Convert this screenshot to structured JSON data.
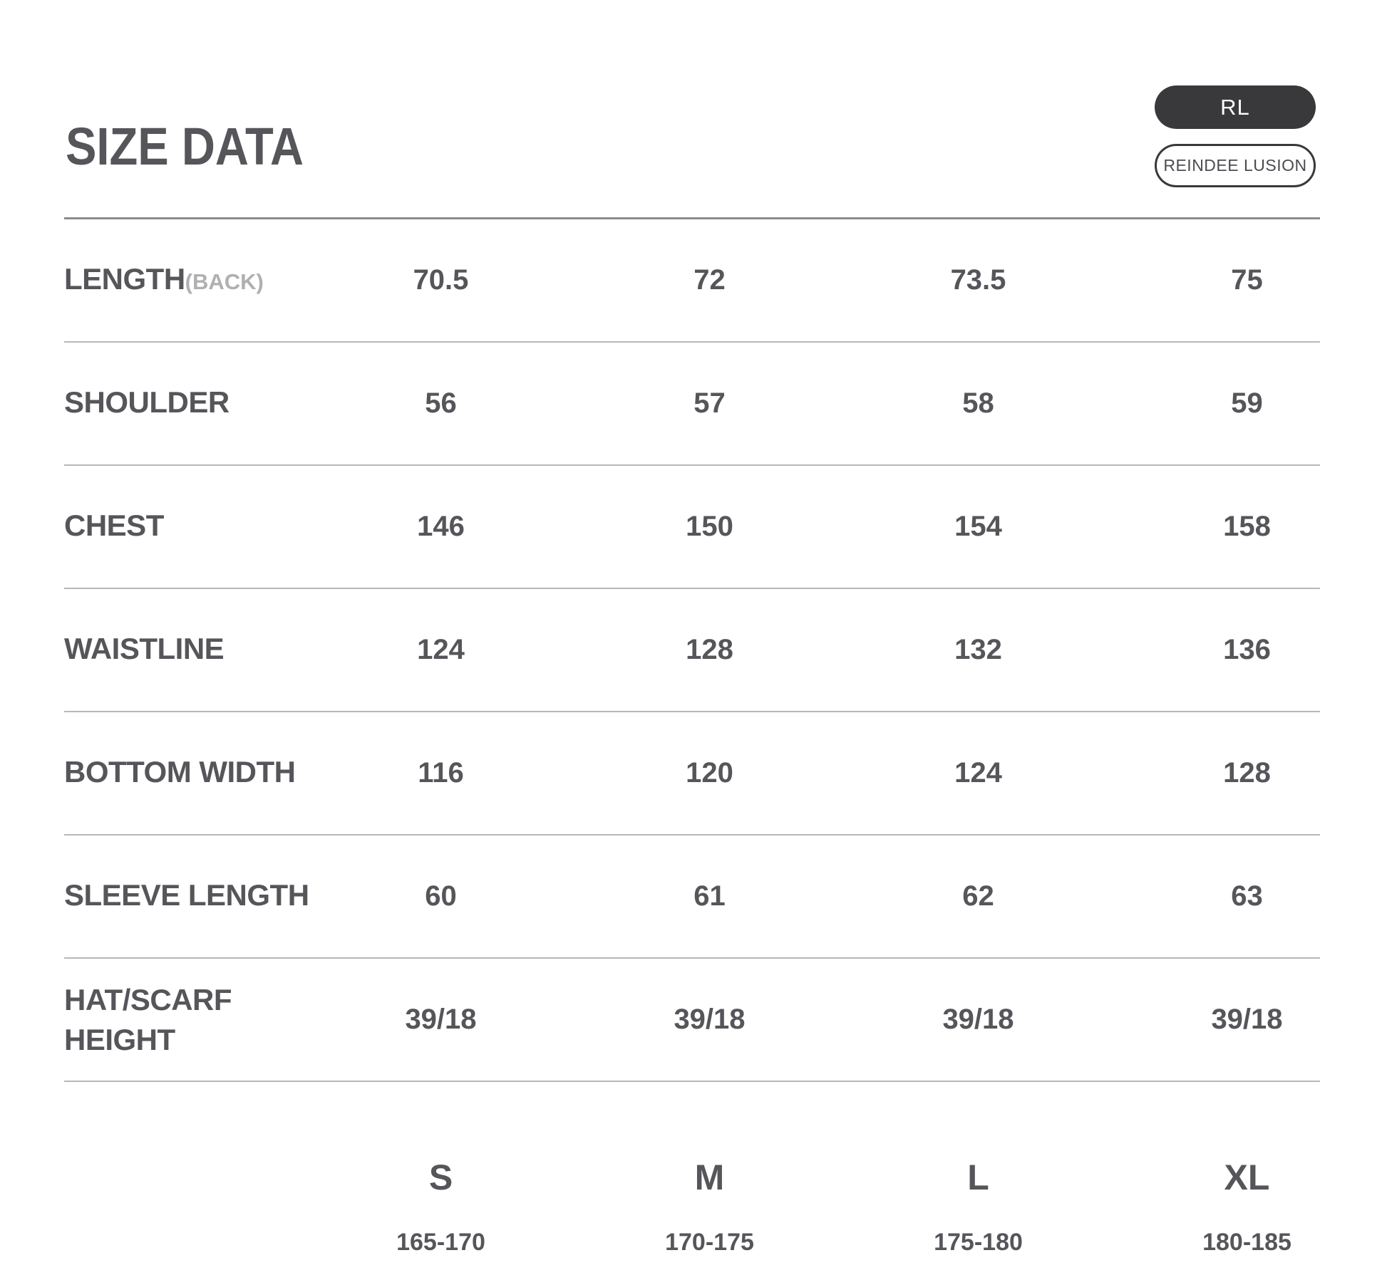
{
  "page": {
    "title": "SIZE DATA"
  },
  "badges": {
    "rl_label": "RL",
    "brand_label": "REINDEE LUSION"
  },
  "colors": {
    "background": "#ffffff",
    "text": "#56555a",
    "muted_text": "#b0b0b2",
    "divider": "#b7b7b7",
    "divider_strong": "#8c8c8c",
    "badge_background": "#39393b",
    "badge_text": "#ffffff"
  },
  "table": {
    "rows": [
      {
        "label_lines": [
          "LENGTH"
        ],
        "label_suffix": "(BACK)",
        "values": [
          "70.5",
          "72",
          "73.5",
          "75"
        ]
      },
      {
        "label_lines": [
          "SHOULDER"
        ],
        "values": [
          "56",
          "57",
          "58",
          "59"
        ]
      },
      {
        "label_lines": [
          "CHEST"
        ],
        "values": [
          "146",
          "150",
          "154",
          "158"
        ]
      },
      {
        "label_lines": [
          "WAISTLINE"
        ],
        "values": [
          "124",
          "128",
          "132",
          "136"
        ]
      },
      {
        "label_lines": [
          "BOTTOM WIDTH"
        ],
        "values": [
          "116",
          "120",
          "124",
          "128"
        ]
      },
      {
        "label_lines": [
          "SLEEVE LENGTH"
        ],
        "values": [
          "60",
          "61",
          "62",
          "63"
        ]
      },
      {
        "label_lines": [
          "HAT/SCARF",
          "HEIGHT"
        ],
        "values": [
          "39/18",
          "39/18",
          "39/18",
          "39/18"
        ]
      }
    ],
    "sizes": [
      {
        "name": "S",
        "height_range": "165-170"
      },
      {
        "name": "M",
        "height_range": "170-175"
      },
      {
        "name": "L",
        "height_range": "175-180"
      },
      {
        "name": "XL",
        "height_range": "180-185"
      }
    ]
  }
}
